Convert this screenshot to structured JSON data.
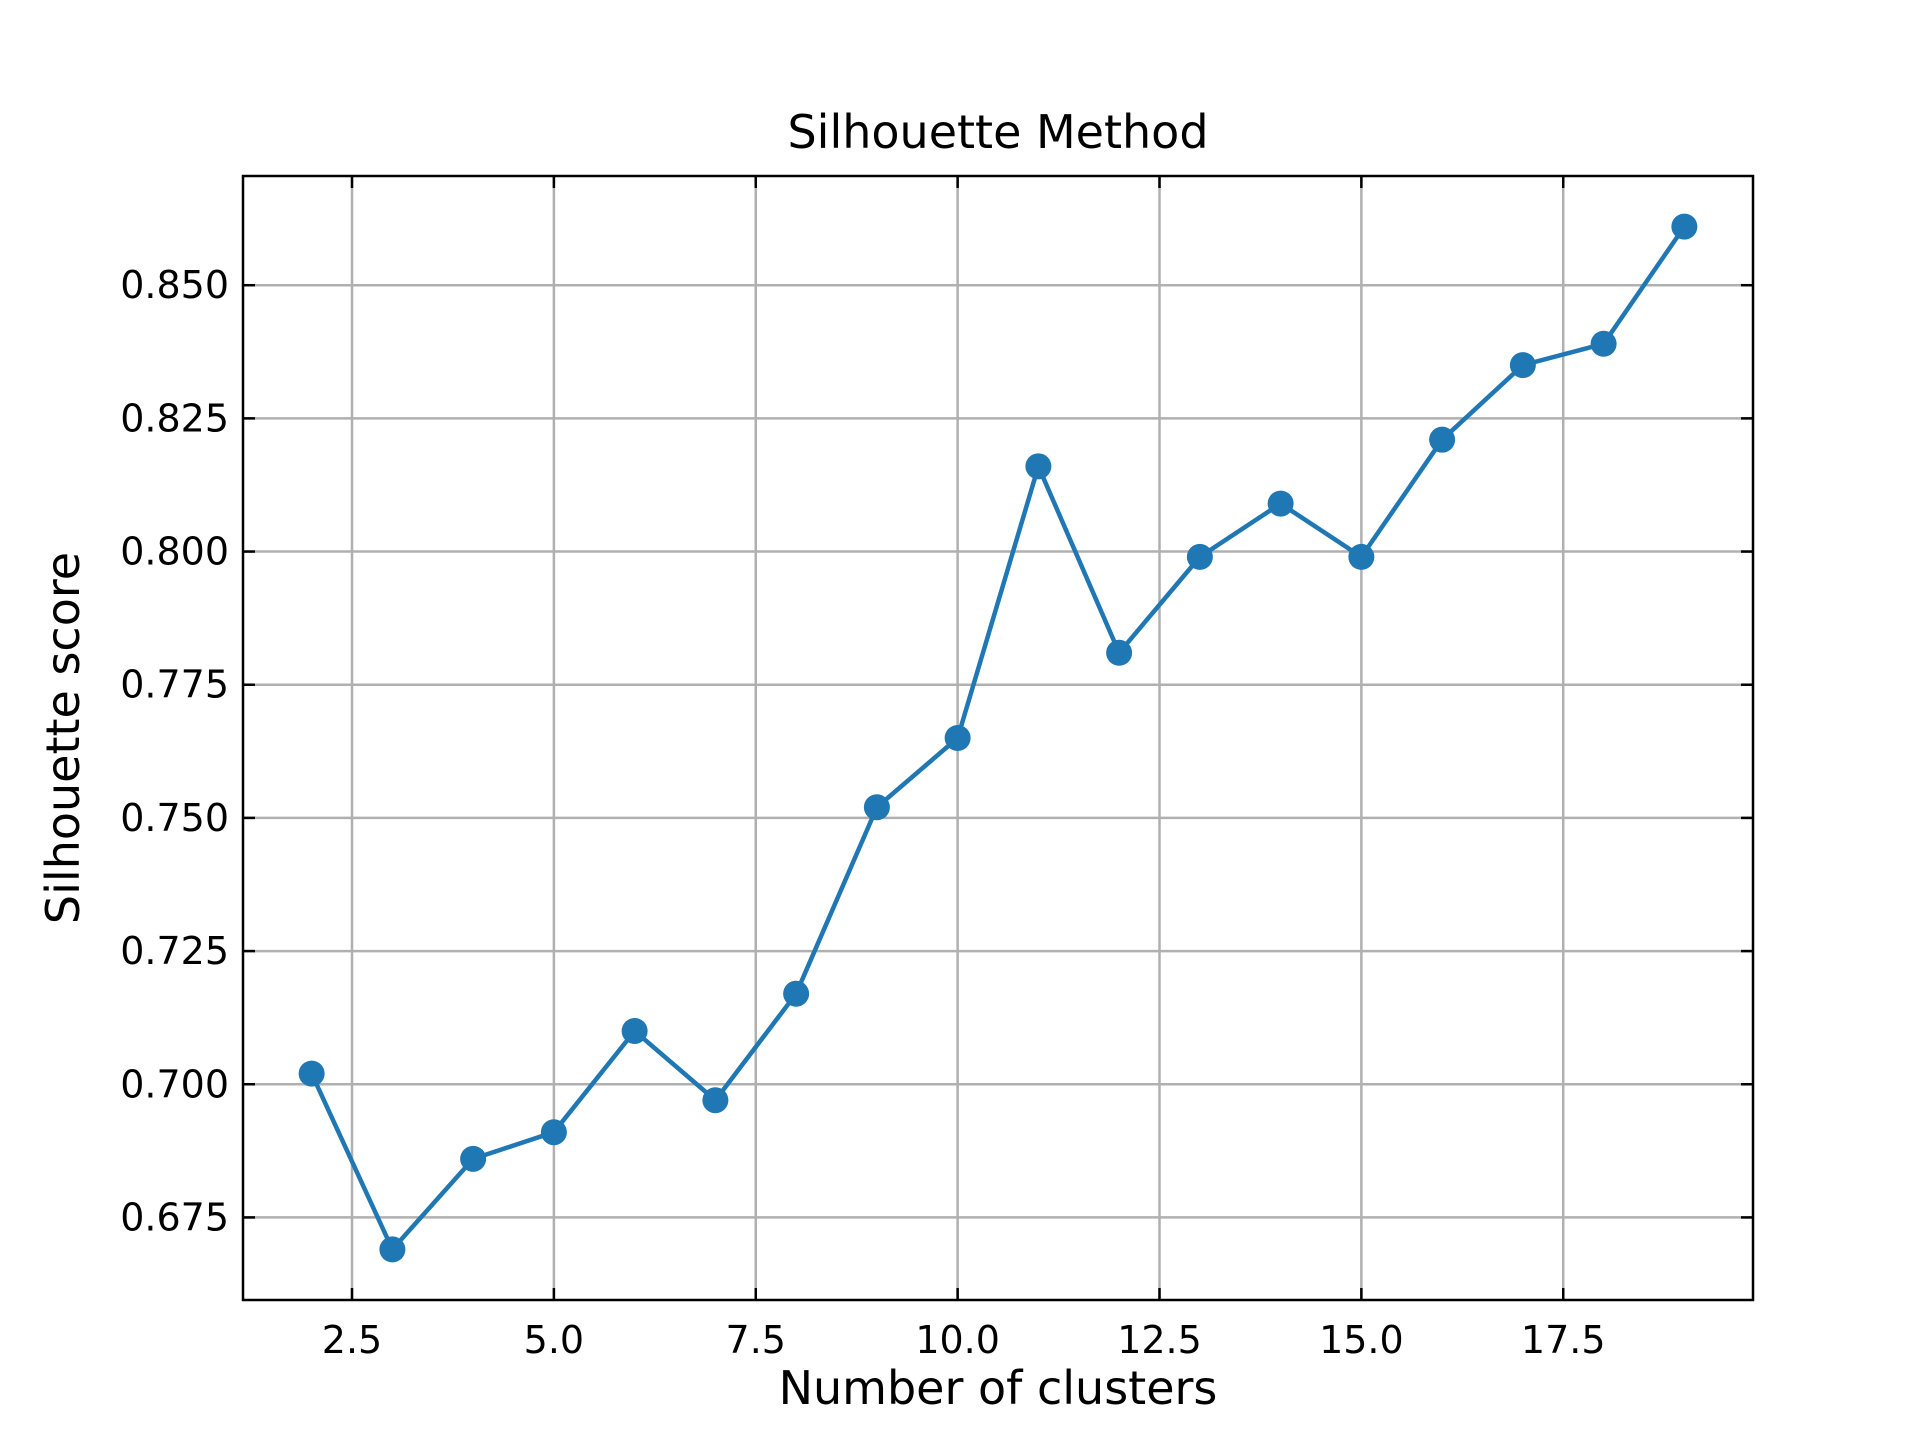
{
  "chart_data": {
    "type": "line",
    "title": "Silhouette Method",
    "xlabel": "Number of clusters",
    "ylabel": "Silhouette score",
    "x": [
      2,
      3,
      4,
      5,
      6,
      7,
      8,
      9,
      10,
      11,
      12,
      13,
      14,
      15,
      16,
      17,
      18,
      19
    ],
    "series": [
      {
        "values": [
          0.702,
          0.669,
          0.686,
          0.691,
          0.71,
          0.697,
          0.717,
          0.752,
          0.765,
          0.816,
          0.781,
          0.799,
          0.809,
          0.799,
          0.821,
          0.835,
          0.839,
          0.861
        ],
        "color": "#1f77b4",
        "marker": "circle"
      }
    ],
    "xlim": [
      1.15,
      19.85
    ],
    "ylim": [
      0.6595,
      0.8705
    ],
    "xticks": [
      2.5,
      5.0,
      7.5,
      10.0,
      12.5,
      15.0,
      17.5
    ],
    "xtick_labels": [
      "2.5",
      "5.0",
      "7.5",
      "10.0",
      "12.5",
      "15.0",
      "17.5"
    ],
    "yticks": [
      0.675,
      0.7,
      0.725,
      0.75,
      0.775,
      0.8,
      0.825,
      0.85
    ],
    "ytick_labels": [
      "0.675",
      "0.700",
      "0.725",
      "0.750",
      "0.775",
      "0.800",
      "0.825",
      "0.850"
    ],
    "grid": true,
    "grid_color": "#b0b0b0",
    "tick_direction": "in",
    "ticks_on_all_sides": true
  }
}
